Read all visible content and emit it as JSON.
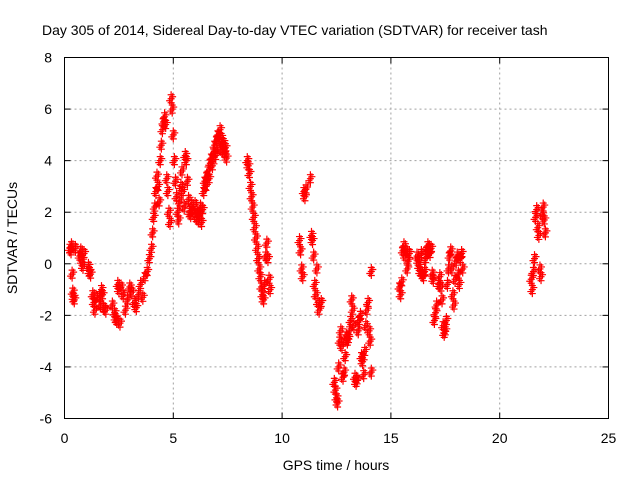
{
  "chart_data": {
    "type": "scatter",
    "title": "Day 305 of 2014, Sidereal Day-to-day VTEC variation (SDTVAR) for receiver tash",
    "xlabel": "GPS time / hours",
    "ylabel": "SDTVAR / TECUs",
    "xlim": [
      0,
      25
    ],
    "ylim": [
      -6,
      8
    ],
    "xticks": [
      "0",
      "5",
      "10",
      "15",
      "20",
      "25"
    ],
    "yticks": [
      "-6",
      "-4",
      "-2",
      "0",
      "2",
      "4",
      "6",
      "8"
    ],
    "grid": true,
    "marker": "+",
    "color": "#ff0000",
    "series": [
      {
        "name": "SDTVAR",
        "points": [
          [
            0.25,
            0.6
          ],
          [
            0.3,
            0.5
          ],
          [
            0.32,
            0.7
          ],
          [
            0.35,
            -0.4
          ],
          [
            0.38,
            -1.1
          ],
          [
            0.42,
            -1.3
          ],
          [
            0.45,
            -1.4
          ],
          [
            0.5,
            0.6
          ],
          [
            0.7,
            0.3
          ],
          [
            0.75,
            0.5
          ],
          [
            0.8,
            0.1
          ],
          [
            0.85,
            -0.1
          ],
          [
            0.9,
            0.4
          ],
          [
            1.1,
            -0.1
          ],
          [
            1.15,
            -0.3
          ],
          [
            1.2,
            -0.4
          ],
          [
            1.3,
            -1.2
          ],
          [
            1.35,
            -1.5
          ],
          [
            1.4,
            -1.8
          ],
          [
            1.45,
            -1.3
          ],
          [
            1.6,
            -1.3
          ],
          [
            1.65,
            -1.6
          ],
          [
            1.7,
            -1.0
          ],
          [
            1.75,
            -1.2
          ],
          [
            1.8,
            -1.7
          ],
          [
            1.9,
            -1.8
          ],
          [
            2.2,
            -1.6
          ],
          [
            2.3,
            -1.9
          ],
          [
            2.35,
            -2.1
          ],
          [
            2.4,
            -2.2
          ],
          [
            2.45,
            -0.8
          ],
          [
            2.5,
            -1.0
          ],
          [
            2.55,
            -2.3
          ],
          [
            2.6,
            -0.9
          ],
          [
            2.7,
            -1.2
          ],
          [
            2.8,
            -1.8
          ],
          [
            2.9,
            -1.4
          ],
          [
            3.0,
            -0.9
          ],
          [
            3.1,
            -1.1
          ],
          [
            3.2,
            -1.5
          ],
          [
            3.3,
            -1.7
          ],
          [
            3.4,
            -1.2
          ],
          [
            3.5,
            -0.8
          ],
          [
            3.6,
            -1.3
          ],
          [
            3.7,
            -0.5
          ],
          [
            3.8,
            -0.3
          ],
          [
            3.9,
            0.2
          ],
          [
            4.0,
            0.6
          ],
          [
            4.05,
            1.2
          ],
          [
            4.1,
            1.8
          ],
          [
            4.15,
            2.2
          ],
          [
            4.2,
            2.8
          ],
          [
            4.25,
            3.4
          ],
          [
            4.3,
            3.0
          ],
          [
            4.35,
            2.4
          ],
          [
            4.4,
            4.0
          ],
          [
            4.45,
            4.6
          ],
          [
            4.5,
            5.2
          ],
          [
            4.55,
            5.5
          ],
          [
            4.6,
            5.7
          ],
          [
            4.65,
            5.4
          ],
          [
            4.7,
            3.3
          ],
          [
            4.75,
            2.8
          ],
          [
            4.8,
            2.0
          ],
          [
            4.85,
            1.6
          ],
          [
            4.9,
            6.4
          ],
          [
            4.95,
            6.0
          ],
          [
            5.0,
            5.0
          ],
          [
            5.05,
            4.0
          ],
          [
            5.1,
            3.2
          ],
          [
            5.15,
            2.6
          ],
          [
            5.2,
            2.0
          ],
          [
            5.25,
            1.7
          ],
          [
            5.3,
            2.4
          ],
          [
            5.35,
            3.0
          ],
          [
            5.4,
            3.6
          ],
          [
            5.45,
            2.8
          ],
          [
            5.5,
            2.2
          ],
          [
            5.55,
            4.2
          ],
          [
            5.6,
            4.0
          ],
          [
            5.65,
            3.2
          ],
          [
            5.7,
            2.5
          ],
          [
            5.75,
            2.0
          ],
          [
            5.8,
            1.9
          ],
          [
            5.85,
            2.3
          ],
          [
            5.9,
            2.0
          ],
          [
            6.0,
            2.3
          ],
          [
            6.05,
            1.8
          ],
          [
            6.1,
            2.0
          ],
          [
            6.15,
            1.7
          ],
          [
            6.2,
            1.9
          ],
          [
            6.25,
            2.2
          ],
          [
            6.3,
            1.6
          ],
          [
            6.35,
            2.1
          ],
          [
            6.4,
            2.8
          ],
          [
            6.45,
            3.2
          ],
          [
            6.5,
            3.0
          ],
          [
            6.55,
            3.4
          ],
          [
            6.6,
            3.6
          ],
          [
            6.65,
            3.3
          ],
          [
            6.7,
            3.9
          ],
          [
            6.75,
            4.1
          ],
          [
            6.8,
            3.8
          ],
          [
            6.85,
            4.3
          ],
          [
            6.9,
            4.6
          ],
          [
            6.95,
            4.2
          ],
          [
            7.0,
            4.8
          ],
          [
            7.05,
            5.0
          ],
          [
            7.1,
            4.5
          ],
          [
            7.15,
            5.2
          ],
          [
            7.2,
            4.9
          ],
          [
            7.25,
            4.4
          ],
          [
            7.3,
            4.7
          ],
          [
            7.35,
            4.3
          ],
          [
            7.4,
            4.5
          ],
          [
            7.45,
            4.1
          ],
          [
            8.4,
            4.0
          ],
          [
            8.45,
            3.8
          ],
          [
            8.5,
            3.5
          ],
          [
            8.55,
            3.0
          ],
          [
            8.6,
            2.6
          ],
          [
            8.65,
            2.2
          ],
          [
            8.7,
            1.8
          ],
          [
            8.75,
            1.4
          ],
          [
            8.8,
            1.0
          ],
          [
            8.85,
            0.6
          ],
          [
            8.9,
            0.2
          ],
          [
            8.95,
            -0.2
          ],
          [
            9.0,
            -0.5
          ],
          [
            9.05,
            -0.9
          ],
          [
            9.1,
            -1.2
          ],
          [
            9.15,
            -1.4
          ],
          [
            9.2,
            -0.8
          ],
          [
            9.25,
            0.3
          ],
          [
            9.3,
            0.8
          ],
          [
            9.35,
            0.2
          ],
          [
            9.4,
            -0.6
          ],
          [
            9.45,
            -1.0
          ],
          [
            10.8,
            0.9
          ],
          [
            10.85,
            0.5
          ],
          [
            10.9,
            -0.2
          ],
          [
            10.95,
            -0.5
          ],
          [
            11.0,
            2.8
          ],
          [
            11.05,
            2.6
          ],
          [
            11.1,
            2.9
          ],
          [
            11.3,
            3.3
          ],
          [
            11.35,
            1.1
          ],
          [
            11.4,
            0.9
          ],
          [
            11.45,
            0.3
          ],
          [
            11.5,
            -0.8
          ],
          [
            11.55,
            -1.2
          ],
          [
            11.6,
            -0.2
          ],
          [
            11.65,
            -1.5
          ],
          [
            11.7,
            -1.8
          ],
          [
            11.8,
            -1.5
          ],
          [
            12.4,
            -4.6
          ],
          [
            12.45,
            -4.9
          ],
          [
            12.5,
            -5.2
          ],
          [
            12.55,
            -5.4
          ],
          [
            12.6,
            -4.0
          ],
          [
            12.65,
            -3.0
          ],
          [
            12.7,
            -2.6
          ],
          [
            12.75,
            -3.2
          ],
          [
            12.8,
            -4.4
          ],
          [
            12.85,
            -4.2
          ],
          [
            12.9,
            -3.6
          ],
          [
            12.95,
            -2.8
          ],
          [
            13.0,
            -3.0
          ],
          [
            13.05,
            -2.9
          ],
          [
            13.1,
            -2.6
          ],
          [
            13.15,
            -2.2
          ],
          [
            13.2,
            -1.4
          ],
          [
            13.25,
            -1.8
          ],
          [
            13.3,
            -2.4
          ],
          [
            13.35,
            -4.4
          ],
          [
            13.4,
            -4.6
          ],
          [
            13.45,
            -4.5
          ],
          [
            13.5,
            -2.6
          ],
          [
            13.55,
            -2.2
          ],
          [
            13.6,
            -2.0
          ],
          [
            13.65,
            -3.6
          ],
          [
            13.7,
            -3.8
          ],
          [
            13.75,
            -4.3
          ],
          [
            13.8,
            -3.4
          ],
          [
            13.85,
            -2.4
          ],
          [
            13.9,
            -1.8
          ],
          [
            13.95,
            -1.5
          ],
          [
            14.0,
            -2.6
          ],
          [
            14.05,
            -3.0
          ],
          [
            14.1,
            -4.2
          ],
          [
            14.1,
            -0.3
          ],
          [
            15.4,
            -0.9
          ],
          [
            15.45,
            -1.2
          ],
          [
            15.5,
            -0.7
          ],
          [
            15.55,
            0.5
          ],
          [
            15.6,
            0.7
          ],
          [
            15.65,
            0.3
          ],
          [
            15.7,
            0.5
          ],
          [
            15.75,
            -0.2
          ],
          [
            15.8,
            0.1
          ],
          [
            15.85,
            0.4
          ],
          [
            16.2,
            0.3
          ],
          [
            16.25,
            0.1
          ],
          [
            16.3,
            -0.1
          ],
          [
            16.35,
            -0.3
          ],
          [
            16.4,
            0.4
          ],
          [
            16.45,
            -0.4
          ],
          [
            16.5,
            -0.5
          ],
          [
            16.55,
            -0.3
          ],
          [
            16.6,
            0.2
          ],
          [
            16.65,
            0.5
          ],
          [
            16.7,
            0.7
          ],
          [
            16.75,
            0.6
          ],
          [
            16.8,
            0.4
          ],
          [
            16.85,
            0.6
          ],
          [
            16.9,
            -0.4
          ],
          [
            16.95,
            -0.6
          ],
          [
            17.0,
            -2.2
          ],
          [
            17.05,
            -1.9
          ],
          [
            17.1,
            -1.6
          ],
          [
            17.2,
            -0.8
          ],
          [
            17.25,
            -0.5
          ],
          [
            17.3,
            -0.9
          ],
          [
            17.35,
            -1.4
          ],
          [
            17.4,
            -2.4
          ],
          [
            17.45,
            -2.7
          ],
          [
            17.5,
            -2.6
          ],
          [
            17.55,
            -2.2
          ],
          [
            17.6,
            -0.8
          ],
          [
            17.65,
            -0.2
          ],
          [
            17.7,
            0.3
          ],
          [
            17.75,
            0.5
          ],
          [
            17.8,
            -0.2
          ],
          [
            17.85,
            -1.2
          ],
          [
            17.9,
            -1.6
          ],
          [
            17.95,
            -0.6
          ],
          [
            18.0,
            0.1
          ],
          [
            18.05,
            0.3
          ],
          [
            18.1,
            -0.4
          ],
          [
            18.15,
            -0.8
          ],
          [
            18.2,
            0.2
          ],
          [
            18.25,
            0.4
          ],
          [
            18.3,
            -0.2
          ],
          [
            21.45,
            -0.6
          ],
          [
            21.5,
            -1.0
          ],
          [
            21.55,
            -0.3
          ],
          [
            21.6,
            0.2
          ],
          [
            21.65,
            1.8
          ],
          [
            21.7,
            2.1
          ],
          [
            21.75,
            1.4
          ],
          [
            21.8,
            1.1
          ],
          [
            21.85,
            -0.2
          ],
          [
            21.9,
            -0.5
          ],
          [
            21.95,
            1.9
          ],
          [
            22.0,
            2.2
          ],
          [
            22.05,
            1.7
          ],
          [
            22.1,
            1.2
          ]
        ]
      }
    ]
  }
}
